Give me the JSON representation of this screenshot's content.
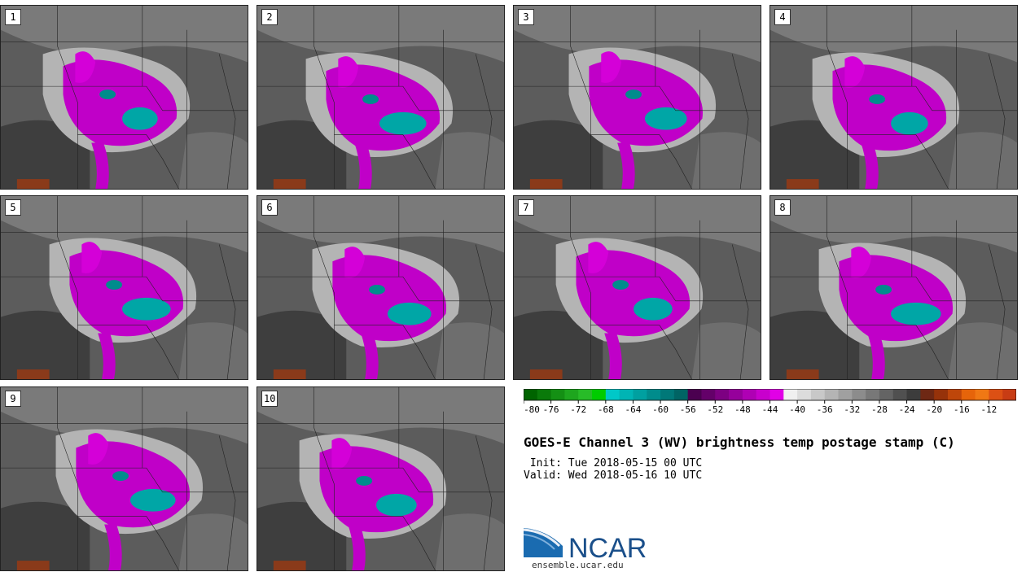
{
  "panels": [
    {
      "label": "1"
    },
    {
      "label": "2"
    },
    {
      "label": "3"
    },
    {
      "label": "4"
    },
    {
      "label": "5"
    },
    {
      "label": "6"
    },
    {
      "label": "7"
    },
    {
      "label": "8"
    },
    {
      "label": "9"
    },
    {
      "label": "10"
    }
  ],
  "colorbar": {
    "tick_labels": [
      "-80",
      "-76",
      "-72",
      "-68",
      "-64",
      "-60",
      "-56",
      "-52",
      "-48",
      "-44",
      "-40",
      "-36",
      "-32",
      "-28",
      "-24",
      "-20",
      "-16",
      "-12"
    ],
    "colors": [
      "#006400",
      "#0a7a0a",
      "#149014",
      "#1ea61e",
      "#28bc28",
      "#00cc00",
      "#00c8c8",
      "#00b4b4",
      "#00a0a0",
      "#008c8c",
      "#007878",
      "#006464",
      "#4b0050",
      "#640069",
      "#7d0082",
      "#96009b",
      "#af00b4",
      "#c800cd",
      "#e100e6",
      "#f0f0f0",
      "#dcdcdc",
      "#c8c8c8",
      "#b4b4b4",
      "#a0a0a0",
      "#8c8c8c",
      "#787878",
      "#646464",
      "#505050",
      "#3c3c3c",
      "#6e2814",
      "#96320a",
      "#be460a",
      "#e6640a",
      "#f07814",
      "#dc5014",
      "#c83c14"
    ]
  },
  "title": "GOES-E Channel 3 (WV) brightness temp postage stamp (C)",
  "init_text": " Init: Tue 2018-05-15 00 UTC",
  "valid_text": "Valid: Wed 2018-05-16 10 UTC",
  "logo": {
    "text": "NCAR",
    "url": "ensemble.ucar.edu",
    "brand_color": "#1a4f8a"
  }
}
